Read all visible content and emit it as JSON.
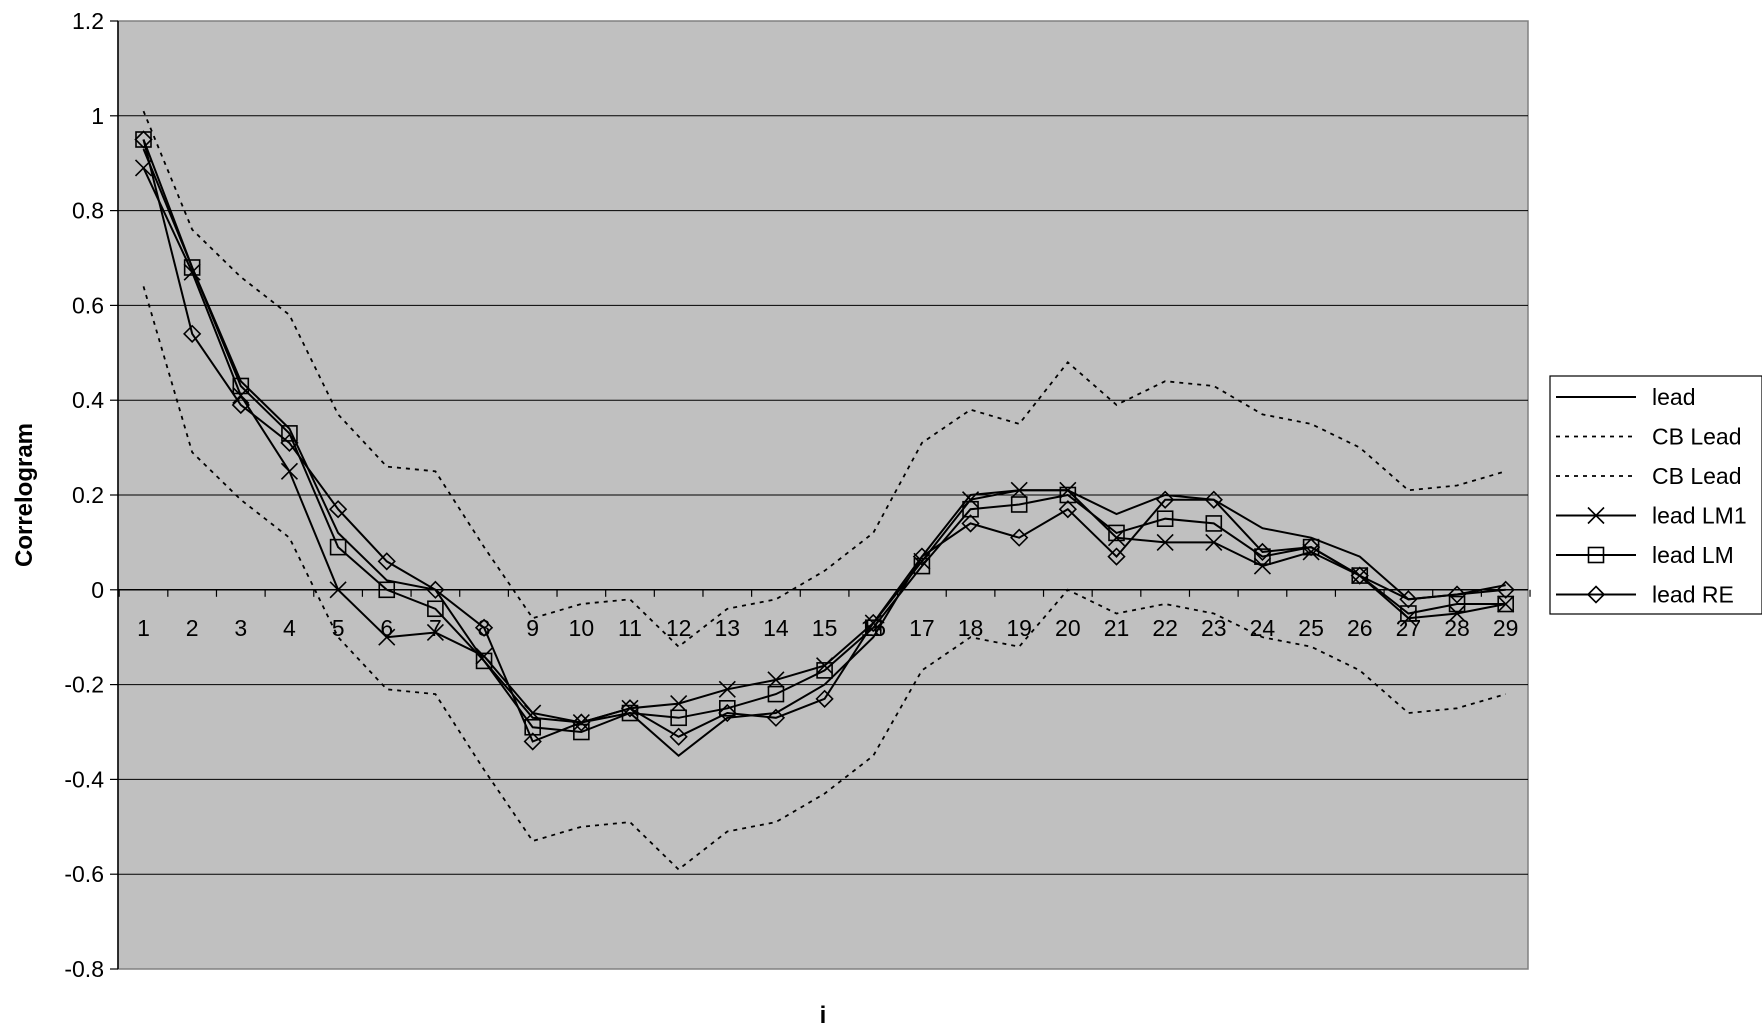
{
  "chart_data": {
    "type": "line",
    "title": "",
    "xlabel": "i",
    "ylabel": "Correlogram",
    "ylim": [
      -0.8,
      1.2
    ],
    "yticks": [
      -0.8,
      -0.6,
      -0.4,
      -0.2,
      0,
      0.2,
      0.4,
      0.6,
      0.8,
      1,
      1.2
    ],
    "ytick_labels": [
      "-0.8",
      "-0.6",
      "-0.4",
      "-0.2",
      "0",
      "0.2",
      "0.4",
      "0.6",
      "0.8",
      "1",
      "1.2"
    ],
    "categories": [
      "1",
      "2",
      "3",
      "4",
      "5",
      "6",
      "7",
      "8",
      "9",
      "10",
      "11",
      "12",
      "13",
      "14",
      "15",
      "16",
      "17",
      "18",
      "19",
      "20",
      "21",
      "22",
      "23",
      "24",
      "25",
      "26",
      "27",
      "28",
      "29"
    ],
    "grid": true,
    "legend_position": "right",
    "plot_background": "#c0c0c0",
    "series": [
      {
        "name": "lead",
        "style": "solid",
        "marker": "none",
        "values": [
          0.93,
          0.68,
          0.44,
          0.34,
          0.12,
          0.02,
          0.0,
          -0.15,
          -0.27,
          -0.28,
          -0.26,
          -0.35,
          -0.27,
          -0.26,
          -0.2,
          -0.1,
          0.07,
          0.2,
          0.21,
          0.21,
          0.16,
          0.2,
          0.19,
          0.13,
          0.11,
          0.07,
          -0.02,
          -0.01,
          0.01
        ]
      },
      {
        "name": "CB Lead",
        "style": "dotted",
        "marker": "none",
        "values": [
          1.01,
          0.76,
          0.66,
          0.58,
          0.37,
          0.26,
          0.25,
          0.09,
          -0.06,
          -0.03,
          -0.02,
          -0.12,
          -0.04,
          -0.02,
          0.04,
          0.12,
          0.31,
          0.38,
          0.35,
          0.48,
          0.39,
          0.44,
          0.43,
          0.37,
          0.35,
          0.3,
          0.21,
          0.22,
          0.25
        ]
      },
      {
        "name": "CB Lead",
        "style": "dotted",
        "marker": "none",
        "values": [
          0.64,
          0.29,
          0.19,
          0.11,
          -0.1,
          -0.21,
          -0.22,
          -0.38,
          -0.53,
          -0.5,
          -0.49,
          -0.59,
          -0.51,
          -0.49,
          -0.43,
          -0.35,
          -0.17,
          -0.1,
          -0.12,
          0.0,
          -0.05,
          -0.03,
          -0.05,
          -0.1,
          -0.12,
          -0.17,
          -0.26,
          -0.25,
          -0.22
        ]
      },
      {
        "name": "lead LM1",
        "style": "solid",
        "marker": "x",
        "values": [
          0.89,
          0.67,
          0.41,
          0.25,
          0.0,
          -0.1,
          -0.09,
          -0.14,
          -0.26,
          -0.28,
          -0.25,
          -0.24,
          -0.21,
          -0.19,
          -0.16,
          -0.07,
          0.06,
          0.19,
          0.21,
          0.21,
          0.11,
          0.1,
          0.1,
          0.05,
          0.08,
          0.03,
          -0.06,
          -0.05,
          -0.03
        ]
      },
      {
        "name": "lead LM",
        "style": "solid",
        "marker": "square",
        "values": [
          0.95,
          0.68,
          0.43,
          0.33,
          0.09,
          0.0,
          -0.04,
          -0.15,
          -0.29,
          -0.3,
          -0.26,
          -0.27,
          -0.25,
          -0.22,
          -0.17,
          -0.08,
          0.05,
          0.17,
          0.18,
          0.2,
          0.12,
          0.15,
          0.14,
          0.07,
          0.09,
          0.03,
          -0.05,
          -0.03,
          -0.03
        ]
      },
      {
        "name": "lead RE",
        "style": "solid",
        "marker": "diamond",
        "values": [
          0.95,
          0.54,
          0.39,
          0.31,
          0.17,
          0.06,
          0.0,
          -0.08,
          -0.32,
          -0.28,
          -0.25,
          -0.31,
          -0.26,
          -0.27,
          -0.23,
          -0.07,
          0.07,
          0.14,
          0.11,
          0.17,
          0.07,
          0.19,
          0.19,
          0.08,
          0.09,
          0.03,
          -0.02,
          -0.01,
          0.0
        ]
      }
    ]
  }
}
